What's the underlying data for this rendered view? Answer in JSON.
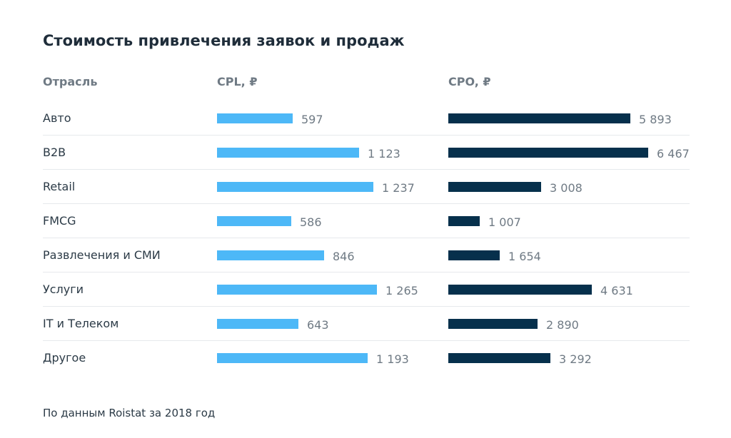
{
  "title": "Стоимость привлечения заявок и продаж",
  "headers": {
    "category": "Отрасль",
    "cpl": "CPL, ₽",
    "cpo": "CPO, ₽"
  },
  "footnote": "По данным Roistat за 2018 год",
  "colors": {
    "cpl": "#4db8f7",
    "cpo": "#06304c"
  },
  "chart_data": [
    {
      "type": "bar",
      "orientation": "horizontal",
      "title": "CPL, ₽",
      "categories": [
        "Авто",
        "B2B",
        "Retail",
        "FMCG",
        "Развлечения и СМИ",
        "Услуги",
        "IT и Телеком",
        "Другое"
      ],
      "values": [
        597,
        1123,
        1237,
        586,
        846,
        1265,
        643,
        1193
      ],
      "value_labels": [
        "597",
        "1 123",
        "1 237",
        "586",
        "846",
        "1 265",
        "643",
        "1 193"
      ],
      "xlim": [
        0,
        1265
      ]
    },
    {
      "type": "bar",
      "orientation": "horizontal",
      "title": "CPO, ₽",
      "categories": [
        "Авто",
        "B2B",
        "Retail",
        "FMCG",
        "Развлечения и СМИ",
        "Услуги",
        "IT и Телеком",
        "Другое"
      ],
      "values": [
        5893,
        6467,
        3008,
        1007,
        1654,
        4631,
        2890,
        3292
      ],
      "value_labels": [
        "5 893",
        "6 467",
        "3 008",
        "1 007",
        "1 654",
        "4 631",
        "2 890",
        "3 292"
      ],
      "xlim": [
        0,
        6467
      ]
    }
  ]
}
